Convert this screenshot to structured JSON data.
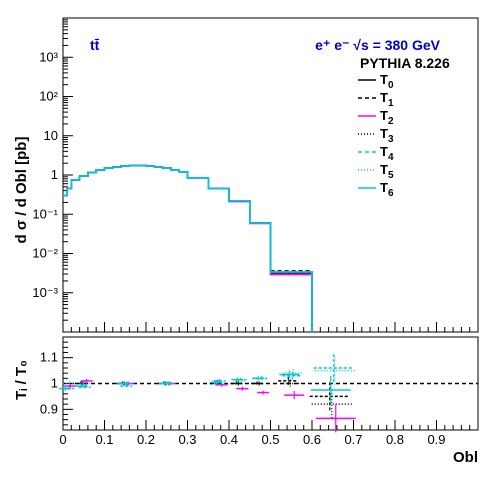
{
  "chart_data": [
    {
      "type": "line",
      "title": "",
      "xlabel": "",
      "ylabel": "d σ / d Obl [pb]",
      "yscale": "log",
      "xlim": [
        0,
        1
      ],
      "ylim": [
        0.0001,
        10000
      ],
      "y_tick_labels": [
        "10⁻³",
        "10⁻²",
        "10⁻¹",
        "1",
        "10",
        "10²",
        "10³"
      ],
      "annotations": {
        "process": "tt̄",
        "beam": "e⁺ e⁻ √s = 380 GeV",
        "generator": "PYTHIA 8.226"
      },
      "bin_edges": [
        0,
        0.01,
        0.02,
        0.04,
        0.06,
        0.08,
        0.1,
        0.12,
        0.14,
        0.16,
        0.18,
        0.2,
        0.22,
        0.24,
        0.26,
        0.28,
        0.3,
        0.35,
        0.4,
        0.45,
        0.5,
        0.6,
        0.7,
        1.0
      ],
      "legend_position": "top-right",
      "series": [
        {
          "name": "T0",
          "color": "#000000",
          "dash": "solid",
          "values": [
            0.3,
            0.45,
            0.75,
            0.95,
            1.15,
            1.35,
            1.5,
            1.6,
            1.7,
            1.75,
            1.75,
            1.7,
            1.6,
            1.5,
            1.35,
            1.2,
            0.85,
            0.45,
            0.22,
            0.06,
            0.0032,
            0.0,
            0.0
          ]
        },
        {
          "name": "T1",
          "color": "#000000",
          "dash": "4,3",
          "values": [
            0.3,
            0.45,
            0.75,
            0.95,
            1.15,
            1.35,
            1.5,
            1.6,
            1.7,
            1.75,
            1.75,
            1.7,
            1.6,
            1.5,
            1.35,
            1.2,
            0.85,
            0.45,
            0.22,
            0.06,
            0.0036,
            0.0,
            0.0
          ]
        },
        {
          "name": "T2",
          "color": "#ff00ff",
          "dash": "solid",
          "values": [
            0.3,
            0.45,
            0.75,
            0.95,
            1.15,
            1.35,
            1.5,
            1.6,
            1.7,
            1.75,
            1.75,
            1.7,
            1.6,
            1.5,
            1.35,
            1.2,
            0.85,
            0.45,
            0.21,
            0.058,
            0.0029,
            0.0,
            0.0
          ]
        },
        {
          "name": "T3",
          "color": "#000000",
          "dash": "1,2",
          "values": [
            0.3,
            0.45,
            0.75,
            0.95,
            1.15,
            1.35,
            1.5,
            1.6,
            1.7,
            1.75,
            1.75,
            1.7,
            1.6,
            1.5,
            1.35,
            1.2,
            0.85,
            0.45,
            0.22,
            0.06,
            0.0033,
            0.0,
            0.0
          ]
        },
        {
          "name": "T4",
          "color": "#00c8dc",
          "dash": "4,3",
          "values": [
            0.3,
            0.45,
            0.75,
            0.95,
            1.15,
            1.35,
            1.5,
            1.6,
            1.7,
            1.75,
            1.75,
            1.7,
            1.6,
            1.5,
            1.35,
            1.2,
            0.85,
            0.45,
            0.22,
            0.06,
            0.0034,
            0.0,
            0.0
          ]
        },
        {
          "name": "T5",
          "color": "#00c8dc",
          "dash": "1,2",
          "values": [
            0.3,
            0.45,
            0.75,
            0.95,
            1.15,
            1.35,
            1.5,
            1.6,
            1.7,
            1.75,
            1.75,
            1.7,
            1.6,
            1.5,
            1.35,
            1.2,
            0.85,
            0.45,
            0.22,
            0.06,
            0.0034,
            0.0,
            0.0
          ]
        },
        {
          "name": "T6",
          "color": "#00c8dc",
          "dash": "solid",
          "values": [
            0.3,
            0.45,
            0.75,
            0.95,
            1.15,
            1.35,
            1.5,
            1.6,
            1.7,
            1.75,
            1.75,
            1.7,
            1.6,
            1.5,
            1.35,
            1.2,
            0.85,
            0.45,
            0.22,
            0.06,
            0.0034,
            0.0,
            0.0
          ]
        }
      ]
    },
    {
      "type": "scatter",
      "title": "",
      "xlabel": "Obl",
      "ylabel": "Tᵢ / T₀",
      "xlim": [
        0,
        1
      ],
      "ylim": [
        0.82,
        1.18
      ],
      "x_tick_labels": [
        "0",
        "0.1",
        "0.2",
        "0.3",
        "0.4",
        "0.5",
        "0.6",
        "0.7",
        "0.8",
        "0.9"
      ],
      "y_tick_labels": [
        "0.9",
        "1",
        "1.1"
      ],
      "reference_line": 1.0,
      "series": [
        {
          "name": "T1",
          "color": "#000000",
          "points": [
            [
              0.05,
              1.0
            ],
            [
              0.15,
              1.0
            ],
            [
              0.25,
              1.0
            ],
            [
              0.375,
              1.0
            ],
            [
              0.425,
              1.0
            ],
            [
              0.475,
              1.0
            ],
            [
              0.55,
              1.01
            ],
            [
              0.65,
              0.95
            ]
          ]
        },
        {
          "name": "T2",
          "color": "#ff00ff",
          "points": [
            [
              0.01,
              0.99
            ],
            [
              0.05,
              1.01
            ],
            [
              0.15,
              1.0
            ],
            [
              0.25,
              1.0
            ],
            [
              0.375,
              0.995
            ],
            [
              0.425,
              0.98
            ],
            [
              0.475,
              0.965
            ],
            [
              0.55,
              0.955
            ],
            [
              0.65,
              0.865
            ]
          ]
        },
        {
          "name": "T3",
          "color": "#000000",
          "points": [
            [
              0.05,
              1.0
            ],
            [
              0.15,
              1.0
            ],
            [
              0.25,
              1.0
            ],
            [
              0.375,
              1.005
            ],
            [
              0.425,
              1.0
            ],
            [
              0.475,
              1.0
            ],
            [
              0.55,
              1.0
            ],
            [
              0.65,
              0.92
            ]
          ]
        },
        {
          "name": "T4",
          "color": "#00c8dc",
          "points": [
            [
              0.01,
              0.98
            ],
            [
              0.05,
              0.985
            ],
            [
              0.15,
              0.99
            ],
            [
              0.25,
              1.0
            ],
            [
              0.375,
              1.01
            ],
            [
              0.425,
              1.015
            ],
            [
              0.475,
              1.02
            ],
            [
              0.55,
              1.03
            ],
            [
              0.65,
              1.06
            ]
          ]
        },
        {
          "name": "T5",
          "color": "#00c8dc",
          "points": [
            [
              0.01,
              1.0
            ],
            [
              0.05,
              1.0
            ],
            [
              0.15,
              1.0
            ],
            [
              0.25,
              1.0
            ],
            [
              0.375,
              1.0
            ],
            [
              0.425,
              1.01
            ],
            [
              0.475,
              1.02
            ],
            [
              0.55,
              1.04
            ],
            [
              0.65,
              1.05
            ]
          ]
        },
        {
          "name": "T6",
          "color": "#00c8dc",
          "points": [
            [
              0.01,
              0.98
            ],
            [
              0.05,
              0.99
            ],
            [
              0.15,
              1.0
            ],
            [
              0.25,
              1.0
            ],
            [
              0.375,
              1.005
            ],
            [
              0.425,
              1.015
            ],
            [
              0.475,
              1.02
            ],
            [
              0.55,
              1.035
            ],
            [
              0.65,
              0.975
            ]
          ]
        }
      ]
    }
  ]
}
